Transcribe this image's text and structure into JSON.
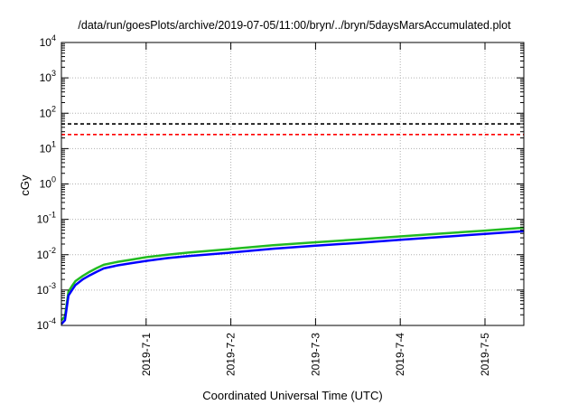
{
  "chart_data": {
    "type": "line",
    "title": "/data/run/goesPlots/archive/2019-07-05/11:00/bryn/../bryn/5daysMarsAccumulated.plot",
    "xlabel": "Coordinated Universal Time (UTC)",
    "ylabel": "cGy",
    "yscale": "log",
    "ylim": [
      0.0001,
      10000
    ],
    "xlim": [
      "2019-06-30 00:00",
      "2019-07-05 11:00"
    ],
    "grid": true,
    "x_ticks": [
      "2019-7-1",
      "2019-7-2",
      "2019-7-3",
      "2019-7-4",
      "2019-7-5"
    ],
    "y_ticks": [
      {
        "base": "10",
        "exp": "-4",
        "value": 0.0001
      },
      {
        "base": "10",
        "exp": "-3",
        "value": 0.001
      },
      {
        "base": "10",
        "exp": "-2",
        "value": 0.01
      },
      {
        "base": "10",
        "exp": "-1",
        "value": 0.1
      },
      {
        "base": "10",
        "exp": "0",
        "value": 1
      },
      {
        "base": "10",
        "exp": "1",
        "value": 10
      },
      {
        "base": "10",
        "exp": "2",
        "value": 100
      },
      {
        "base": "10",
        "exp": "3",
        "value": 1000
      },
      {
        "base": "10",
        "exp": "4",
        "value": 10000
      }
    ],
    "reference_lines": [
      {
        "value": 50,
        "color": "#000000",
        "style": "dashed"
      },
      {
        "value": 25,
        "color": "#ff0000",
        "style": "dashed"
      }
    ],
    "series": [
      {
        "color": "#22bb22",
        "x": [
          "2019-06-30 00:00",
          "2019-06-30 01:00",
          "2019-06-30 02:00",
          "2019-06-30 03:00",
          "2019-06-30 04:00",
          "2019-06-30 06:00",
          "2019-06-30 08:00",
          "2019-06-30 10:00",
          "2019-06-30 12:00",
          "2019-06-30 16:00",
          "2019-06-30 20:00",
          "2019-07-01 00:00",
          "2019-07-01 06:00",
          "2019-07-01 12:00",
          "2019-07-02 00:00",
          "2019-07-02 12:00",
          "2019-07-03 00:00",
          "2019-07-03 12:00",
          "2019-07-04 00:00",
          "2019-07-04 12:00",
          "2019-07-05 00:00",
          "2019-07-05 11:00"
        ],
        "y": [
          0.00014,
          0.00018,
          0.0009,
          0.0013,
          0.0018,
          0.0025,
          0.0033,
          0.0042,
          0.0052,
          0.0063,
          0.0073,
          0.0085,
          0.01,
          0.0115,
          0.0145,
          0.0185,
          0.0225,
          0.027,
          0.033,
          0.04,
          0.048,
          0.058
        ]
      },
      {
        "color": "#0000ff",
        "x": [
          "2019-06-30 00:00",
          "2019-06-30 01:00",
          "2019-06-30 02:00",
          "2019-06-30 03:00",
          "2019-06-30 04:00",
          "2019-06-30 06:00",
          "2019-06-30 08:00",
          "2019-06-30 10:00",
          "2019-06-30 12:00",
          "2019-06-30 16:00",
          "2019-06-30 20:00",
          "2019-07-01 00:00",
          "2019-07-01 06:00",
          "2019-07-01 12:00",
          "2019-07-02 00:00",
          "2019-07-02 12:00",
          "2019-07-03 00:00",
          "2019-07-03 12:00",
          "2019-07-04 00:00",
          "2019-07-04 12:00",
          "2019-07-05 00:00",
          "2019-07-05 11:00"
        ],
        "y": [
          0.00011,
          0.00014,
          0.0007,
          0.001,
          0.0014,
          0.002,
          0.0026,
          0.0033,
          0.0041,
          0.005,
          0.0058,
          0.0067,
          0.008,
          0.0092,
          0.0115,
          0.0148,
          0.018,
          0.0215,
          0.0265,
          0.032,
          0.0385,
          0.046
        ]
      }
    ]
  }
}
